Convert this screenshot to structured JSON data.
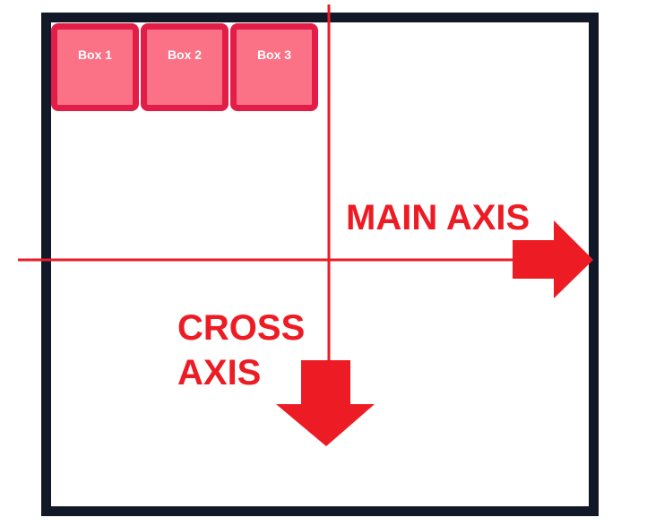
{
  "boxes": [
    {
      "label": "Box 1"
    },
    {
      "label": "Box 2"
    },
    {
      "label": "Box 3"
    }
  ],
  "axes": {
    "main_label": "MAIN AXIS",
    "cross_label_line1": "CROSS",
    "cross_label_line2": "AXIS"
  },
  "colors": {
    "axis": "#ed1c24",
    "box_fill": "#fb7185",
    "box_border": "#e11d48",
    "box_text": "#ffffff",
    "container_border": "#111827"
  }
}
